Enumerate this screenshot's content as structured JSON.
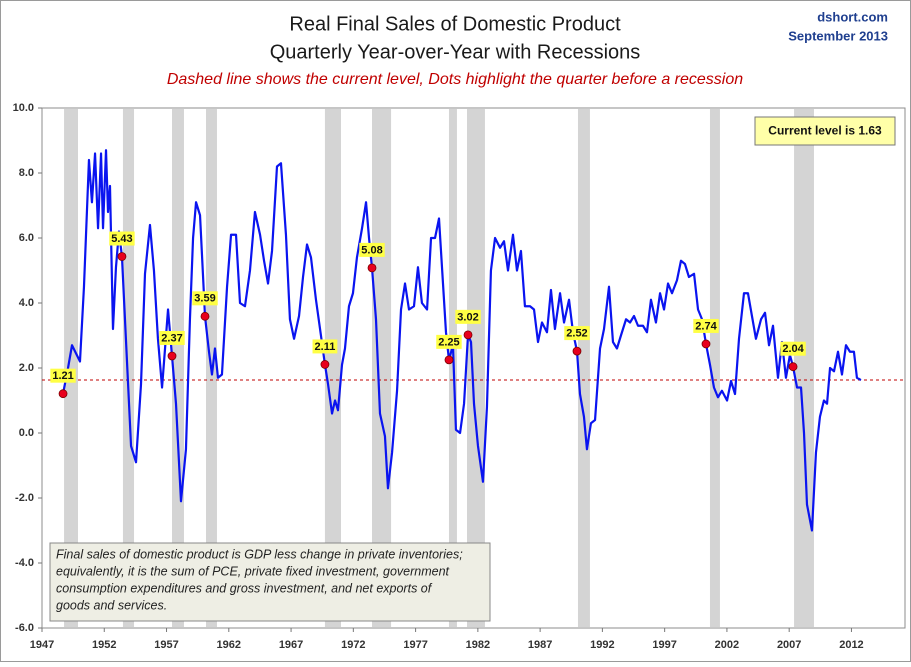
{
  "chart_data": {
    "type": "line",
    "title": "Real Final Sales of Domestic Product",
    "title_line2": "Quarterly Year-over-Year with Recessions",
    "subtitle": "Dashed line shows the current level, Dots highlight the quarter before a recession",
    "source": "dshort.com",
    "date": "September 2013",
    "xlim": [
      1947,
      2016.3
    ],
    "xticks": [
      1947,
      1952,
      1957,
      1962,
      1967,
      1972,
      1977,
      1982,
      1987,
      1992,
      1997,
      2002,
      2007,
      2012
    ],
    "ylim": [
      -6,
      10
    ],
    "yticks": [
      {
        "value": 10,
        "label": "10.0"
      },
      {
        "value": 8,
        "label": "8.0"
      },
      {
        "value": 6,
        "label": "6.0"
      },
      {
        "value": 4,
        "label": "4.0"
      },
      {
        "value": 2,
        "label": "2.0"
      },
      {
        "value": 0,
        "label": "0.0"
      },
      {
        "value": -2,
        "label": "-2.0"
      },
      {
        "value": -4,
        "label": "-4.0"
      },
      {
        "value": -6,
        "label": "-6.0"
      }
    ],
    "grid": false,
    "x": [
      1948.69,
      1949.09,
      1949.41,
      1950.05,
      1950.37,
      1950.77,
      1951.01,
      1951.26,
      1951.5,
      1951.74,
      1951.9,
      1952.14,
      1952.3,
      1952.46,
      1952.7,
      1952.94,
      1953.18,
      1953.42,
      1953.75,
      1954.15,
      1954.55,
      1954.95,
      1955.27,
      1955.67,
      1955.99,
      1956.31,
      1956.64,
      1957.12,
      1957.44,
      1957.76,
      1958.16,
      1958.56,
      1958.88,
      1959.13,
      1959.37,
      1959.69,
      1960.09,
      1960.41,
      1960.65,
      1960.89,
      1961.13,
      1961.45,
      1961.86,
      1962.18,
      1962.58,
      1962.9,
      1963.3,
      1963.7,
      1964.1,
      1964.51,
      1964.83,
      1965.15,
      1965.47,
      1965.87,
      1966.19,
      1966.59,
      1966.91,
      1967.24,
      1967.64,
      1967.96,
      1968.28,
      1968.6,
      1969.0,
      1969.4,
      1969.72,
      1969.97,
      1970.29,
      1970.53,
      1970.77,
      1971.09,
      1971.33,
      1971.65,
      1971.97,
      1972.29,
      1972.7,
      1973.02,
      1973.26,
      1973.5,
      1973.82,
      1974.14,
      1974.54,
      1974.78,
      1975.11,
      1975.51,
      1975.83,
      1976.15,
      1976.47,
      1976.87,
      1977.19,
      1977.51,
      1977.92,
      1978.24,
      1978.56,
      1978.88,
      1979.2,
      1979.44,
      1979.68,
      1980.0,
      1980.24,
      1980.57,
      1980.89,
      1981.21,
      1981.45,
      1981.69,
      1982.01,
      1982.41,
      1982.73,
      1983.05,
      1983.38,
      1983.78,
      1984.1,
      1984.42,
      1984.82,
      1985.14,
      1985.46,
      1985.78,
      1986.19,
      1986.51,
      1986.83,
      1987.15,
      1987.55,
      1987.87,
      1988.19,
      1988.6,
      1988.92,
      1989.32,
      1989.64,
      1989.96,
      1990.2,
      1990.52,
      1990.76,
      1991.08,
      1991.41,
      1991.81,
      1992.13,
      1992.53,
      1992.85,
      1993.17,
      1993.49,
      1993.9,
      1994.22,
      1994.54,
      1994.86,
      1995.26,
      1995.58,
      1995.9,
      1996.3,
      1996.63,
      1996.95,
      1997.27,
      1997.59,
      1997.99,
      1998.31,
      1998.63,
      1998.95,
      1999.36,
      1999.68,
      2000.0,
      2000.32,
      2000.64,
      2000.96,
      2001.28,
      2001.6,
      2002.01,
      2002.33,
      2002.65,
      2002.97,
      2003.37,
      2003.69,
      2004.01,
      2004.33,
      2004.74,
      2005.06,
      2005.38,
      2005.7,
      2006.1,
      2006.42,
      2006.74,
      2007.06,
      2007.31,
      2007.63,
      2007.95,
      2008.19,
      2008.43,
      2008.83,
      2009.15,
      2009.47,
      2009.79,
      2010.04,
      2010.28,
      2010.6,
      2010.92,
      2011.24,
      2011.56,
      2011.88,
      2012.2,
      2012.44,
      2012.76
    ],
    "series": [
      {
        "color": "#0a14f0",
        "values": [
          1.21,
          2.0,
          2.7,
          2.2,
          4.5,
          8.4,
          7.1,
          8.6,
          6.3,
          8.6,
          6.3,
          8.7,
          6.8,
          7.6,
          3.2,
          5.1,
          6.2,
          5.43,
          2.8,
          -0.4,
          -0.9,
          1.5,
          4.9,
          6.4,
          5.0,
          2.9,
          1.4,
          3.8,
          2.37,
          0.9,
          -2.1,
          -0.5,
          3.5,
          6.0,
          7.1,
          6.7,
          3.59,
          2.5,
          1.8,
          2.6,
          1.7,
          1.8,
          4.5,
          6.1,
          6.1,
          4.0,
          3.9,
          5.0,
          6.8,
          6.1,
          5.3,
          4.6,
          5.6,
          8.2,
          8.3,
          6.1,
          3.5,
          2.9,
          3.6,
          4.8,
          5.8,
          5.4,
          4.1,
          3.0,
          2.11,
          1.5,
          0.6,
          1.0,
          0.7,
          2.1,
          2.6,
          3.9,
          4.3,
          5.4,
          6.3,
          7.1,
          6.0,
          5.08,
          3.5,
          0.6,
          -0.1,
          -1.7,
          -0.6,
          1.3,
          3.8,
          4.6,
          3.8,
          3.9,
          5.1,
          4.0,
          3.8,
          6.0,
          6.0,
          6.6,
          4.6,
          3.1,
          2.25,
          2.7,
          0.1,
          0.0,
          0.9,
          3.02,
          2.8,
          0.9,
          -0.4,
          -1.5,
          0.8,
          5.0,
          6.0,
          5.7,
          5.9,
          5.0,
          6.1,
          5.0,
          5.6,
          3.9,
          3.9,
          3.8,
          2.8,
          3.4,
          3.1,
          4.4,
          3.2,
          4.3,
          3.4,
          4.1,
          3.1,
          2.52,
          1.2,
          0.5,
          -0.5,
          0.3,
          0.4,
          2.6,
          3.2,
          4.5,
          2.8,
          2.6,
          3.0,
          3.5,
          3.4,
          3.6,
          3.3,
          3.3,
          3.1,
          4.1,
          3.4,
          4.3,
          3.8,
          4.6,
          4.3,
          4.7,
          5.3,
          5.2,
          4.8,
          4.9,
          3.8,
          3.5,
          2.74,
          2.1,
          1.4,
          1.1,
          1.3,
          1.0,
          1.6,
          1.2,
          2.9,
          4.3,
          4.3,
          3.6,
          2.9,
          3.5,
          3.7,
          2.7,
          3.3,
          1.7,
          2.8,
          1.7,
          2.4,
          2.04,
          1.4,
          1.4,
          0.0,
          -2.2,
          -3.0,
          -0.6,
          0.5,
          1.0,
          0.9,
          2.0,
          1.9,
          2.5,
          1.8,
          2.7,
          2.5,
          2.5,
          1.7,
          1.63
        ]
      }
    ],
    "highlights": {
      "color": "#e8001c",
      "x": [
        1948.69,
        1953.42,
        1957.44,
        1960.09,
        1969.72,
        1973.5,
        1979.68,
        1981.21,
        1989.96,
        2000.32,
        2007.31
      ],
      "values": [
        1.21,
        5.43,
        2.37,
        3.59,
        2.11,
        5.08,
        2.25,
        3.02,
        2.52,
        2.74,
        2.04
      ]
    },
    "recessions": [
      [
        1948.77,
        1949.89
      ],
      [
        1953.5,
        1954.39
      ],
      [
        1957.44,
        1958.4
      ],
      [
        1960.17,
        1961.05
      ],
      [
        1969.72,
        1971.01
      ],
      [
        1973.5,
        1975.03
      ],
      [
        1979.68,
        1980.32
      ],
      [
        1981.13,
        1982.57
      ],
      [
        1990.04,
        1991.0
      ],
      [
        2000.64,
        2001.44
      ],
      [
        2007.39,
        2008.99
      ]
    ],
    "recession_color": "#d4d4d4",
    "reference_line": {
      "value": 1.63,
      "label": "Current level is 1.63",
      "color": "#c00000"
    },
    "note": [
      "Final sales of domestic product is GDP less change in private inventories;",
      "equivalently, it is the sum of PCE, private fixed investment, government",
      "consumption expenditures and gross investment, and net exports of",
      "goods and services."
    ]
  }
}
